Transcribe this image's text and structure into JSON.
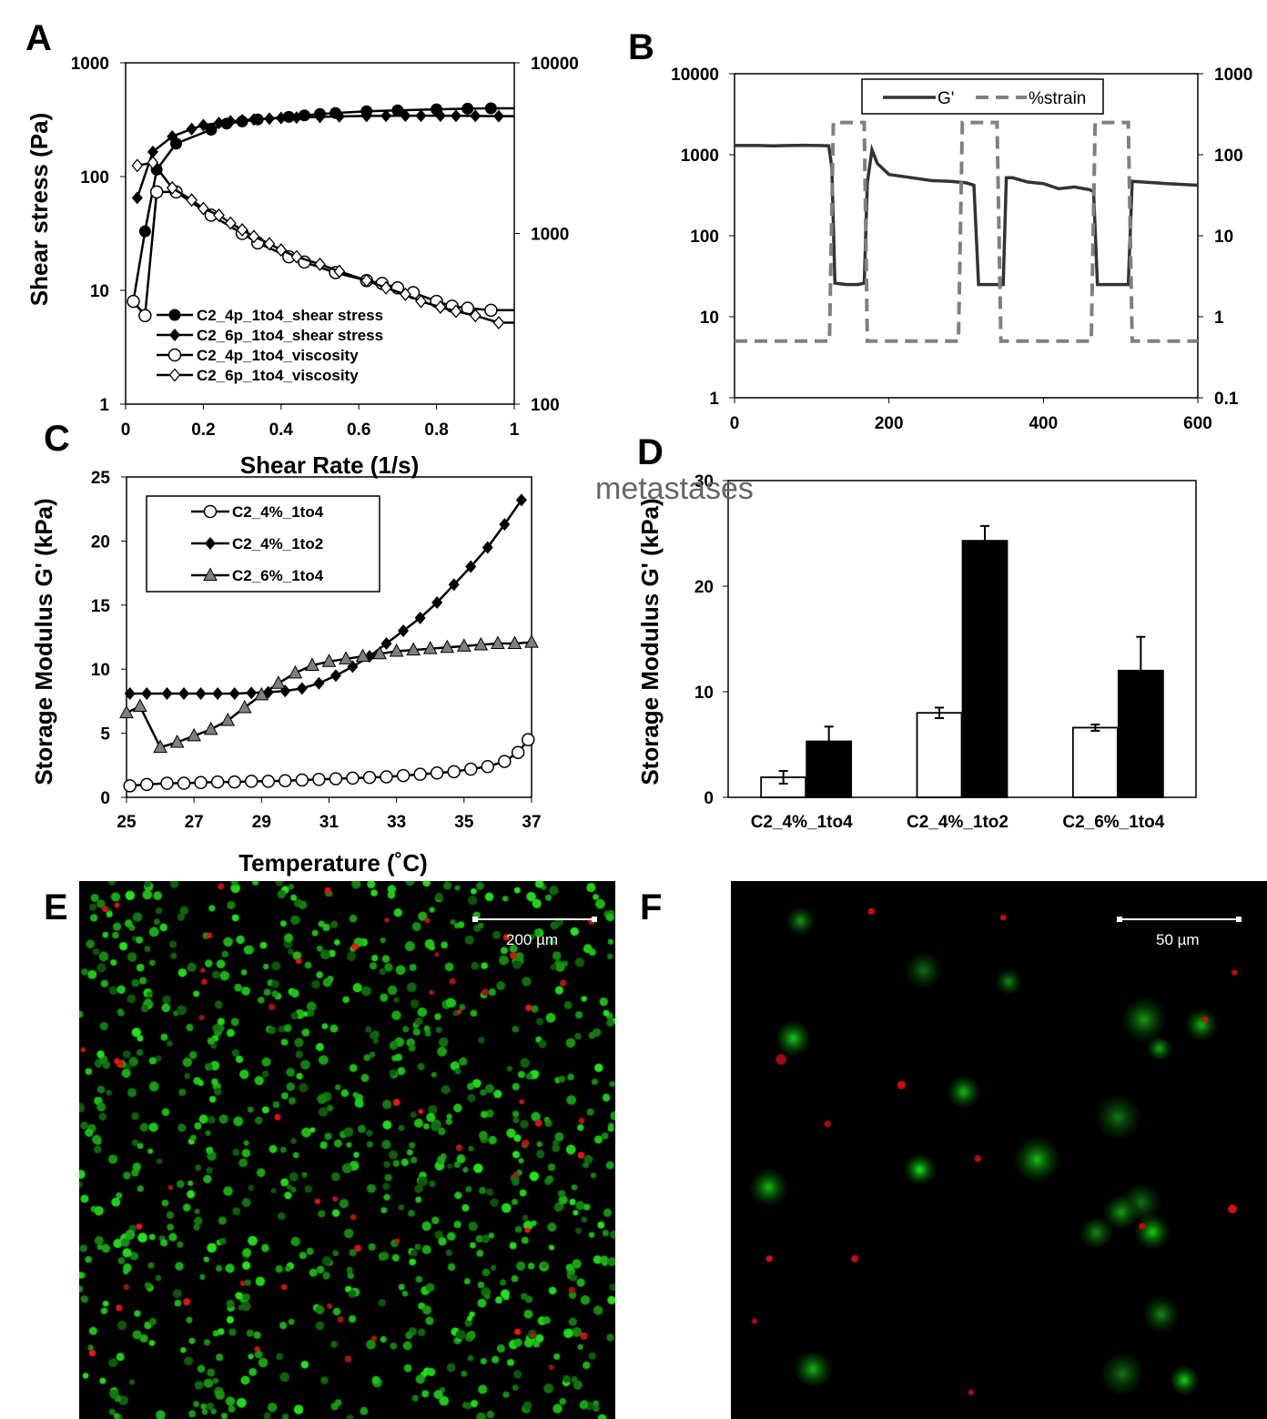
{
  "panel_letters": {
    "a": "A",
    "b": "B",
    "c": "C",
    "d": "D",
    "e": "E",
    "f": "F"
  },
  "watermark": "metastases",
  "chart_data": [
    {
      "panel": "A",
      "type": "line",
      "xlabel": "Shear Rate (1/s)",
      "ylabel": "Shear stress (Pa)",
      "xlim": [
        0,
        1
      ],
      "ylim": [
        1,
        1000
      ],
      "y_scale": "log",
      "y2lim": [
        100,
        10000
      ],
      "y2_scale": "log",
      "x_ticks": [
        "0",
        "0.2",
        "0.4",
        "0.6",
        "0.8",
        "1"
      ],
      "y_ticks": [
        "1",
        "10",
        "100",
        "1000"
      ],
      "y2_ticks": [
        "100",
        "1000",
        "10000"
      ],
      "legend_position": "bottom-left",
      "series": [
        {
          "name": "C2_4p_1to4_shear stress",
          "axis": "left",
          "marker": "filled-circle",
          "x": [
            0.02,
            0.05,
            0.08,
            0.13,
            0.22,
            0.26,
            0.3,
            0.34,
            0.42,
            0.46,
            0.5,
            0.54,
            0.62,
            0.7,
            0.8,
            0.88,
            0.94
          ],
          "y": [
            8,
            33,
            115,
            195,
            258,
            292,
            305,
            318,
            335,
            345,
            355,
            362,
            375,
            382,
            390,
            395,
            398
          ]
        },
        {
          "name": "C2_6p_1to4_shear stress",
          "axis": "left",
          "marker": "filled-diamond",
          "x": [
            0.03,
            0.07,
            0.12,
            0.17,
            0.2,
            0.24,
            0.27,
            0.3,
            0.33,
            0.37,
            0.4,
            0.44,
            0.5,
            0.55,
            0.62,
            0.67,
            0.72,
            0.76,
            0.81,
            0.85,
            0.9,
            0.96
          ],
          "y": [
            65,
            165,
            225,
            262,
            283,
            296,
            306,
            313,
            318,
            323,
            327,
            330,
            335,
            338,
            341,
            342,
            343,
            343,
            343,
            342,
            341,
            340
          ]
        },
        {
          "name": "C2_4p_1to4_viscosity",
          "axis": "right",
          "marker": "open-circle",
          "x": [
            0.02,
            0.05,
            0.08,
            0.13,
            0.22,
            0.3,
            0.34,
            0.42,
            0.46,
            0.54,
            0.62,
            0.66,
            0.7,
            0.74,
            0.8,
            0.84,
            0.88,
            0.94
          ],
          "y": [
            400,
            330,
            1750,
            1750,
            1280,
            1000,
            880,
            730,
            680,
            590,
            530,
            510,
            480,
            450,
            400,
            375,
            365,
            355
          ]
        },
        {
          "name": "C2_6p_1to4_viscosity",
          "axis": "right",
          "marker": "open-diamond",
          "x": [
            0.03,
            0.07,
            0.12,
            0.17,
            0.2,
            0.24,
            0.27,
            0.3,
            0.33,
            0.37,
            0.4,
            0.44,
            0.5,
            0.55,
            0.62,
            0.67,
            0.72,
            0.76,
            0.81,
            0.85,
            0.9,
            0.96
          ],
          "y": [
            2500,
            2600,
            1850,
            1570,
            1400,
            1280,
            1150,
            1050,
            960,
            870,
            800,
            730,
            660,
            600,
            530,
            480,
            440,
            400,
            370,
            350,
            330,
            300
          ]
        }
      ]
    },
    {
      "panel": "B",
      "type": "line",
      "xlim": [
        0,
        600
      ],
      "ylim": [
        1,
        10000
      ],
      "y_scale": "log",
      "y2lim": [
        0.1,
        1000
      ],
      "y2_scale": "log",
      "x_ticks": [
        "0",
        "200",
        "400",
        "600"
      ],
      "y_ticks": [
        "1",
        "10",
        "100",
        "1000",
        "10000"
      ],
      "y2_ticks": [
        "0.1",
        "1",
        "10",
        "100",
        "1000"
      ],
      "legend_position": "top-center",
      "series": [
        {
          "name": "G'",
          "axis": "left",
          "style": "solid",
          "x": [
            0,
            15,
            30,
            50,
            70,
            90,
            110,
            122,
            126,
            130,
            145,
            160,
            168,
            172,
            178,
            185,
            200,
            230,
            255,
            280,
            300,
            310,
            316,
            322,
            330,
            340,
            348,
            352,
            360,
            380,
            400,
            420,
            440,
            460,
            465,
            470,
            476,
            480,
            490,
            500,
            510,
            515,
            530,
            560,
            580,
            600
          ],
          "y": [
            1300,
            1300,
            1300,
            1290,
            1300,
            1310,
            1300,
            1290,
            700,
            26,
            25,
            25,
            26,
            450,
            1150,
            780,
            570,
            520,
            480,
            470,
            450,
            420,
            25,
            25,
            25,
            25,
            25,
            520,
            520,
            460,
            440,
            380,
            400,
            370,
            350,
            25,
            25,
            25,
            25,
            25,
            25,
            470,
            460,
            440,
            430,
            420
          ]
        },
        {
          "name": "%strain",
          "axis": "right",
          "style": "dashed",
          "x": [
            0,
            123,
            128,
            168,
            172,
            290,
            295,
            340,
            345,
            462,
            467,
            510,
            515,
            600
          ],
          "y": [
            0.5,
            0.5,
            250,
            250,
            0.5,
            0.5,
            250,
            250,
            0.5,
            0.5,
            250,
            250,
            0.5,
            0.5
          ]
        }
      ]
    },
    {
      "panel": "C",
      "type": "line",
      "xlabel": "Temperature (˚C)",
      "ylabel": "Storage Modulus G' (kPa)",
      "xlim": [
        25,
        37
      ],
      "ylim": [
        0,
        25
      ],
      "x_ticks": [
        "25",
        "27",
        "29",
        "31",
        "33",
        "35",
        "37"
      ],
      "y_ticks": [
        "0",
        "5",
        "10",
        "15",
        "20",
        "25"
      ],
      "legend_position": "top-left",
      "series": [
        {
          "name": "C2_4%_1to4",
          "marker": "open-circle",
          "x": [
            25.1,
            25.6,
            26.2,
            26.7,
            27.2,
            27.7,
            28.2,
            28.7,
            29.2,
            29.7,
            30.2,
            30.7,
            31.2,
            31.7,
            32.2,
            32.7,
            33.2,
            33.7,
            34.2,
            34.7,
            35.2,
            35.7,
            36.2,
            36.6,
            36.9
          ],
          "y": [
            0.9,
            1.0,
            1.1,
            1.1,
            1.15,
            1.2,
            1.2,
            1.25,
            1.25,
            1.3,
            1.35,
            1.4,
            1.45,
            1.5,
            1.55,
            1.6,
            1.7,
            1.8,
            1.9,
            2.0,
            2.2,
            2.4,
            2.8,
            3.5,
            4.5
          ]
        },
        {
          "name": "C2_4%_1to2",
          "marker": "filled-diamond",
          "x": [
            25.1,
            25.6,
            26.2,
            26.7,
            27.2,
            27.7,
            28.2,
            28.7,
            29.2,
            29.7,
            30.2,
            30.7,
            31.2,
            31.7,
            32.2,
            32.7,
            33.2,
            33.7,
            34.2,
            34.7,
            35.2,
            35.7,
            36.2,
            36.7
          ],
          "y": [
            8.1,
            8.1,
            8.1,
            8.1,
            8.1,
            8.1,
            8.1,
            8.15,
            8.2,
            8.3,
            8.5,
            8.9,
            9.5,
            10.2,
            11.0,
            12.0,
            13.0,
            14.0,
            15.2,
            16.6,
            18.0,
            19.5,
            21.3,
            23.2
          ]
        },
        {
          "name": "C2_6%_1to4",
          "marker": "gray-triangle",
          "x": [
            25.0,
            25.4,
            26.0,
            26.5,
            27.0,
            27.5,
            28.0,
            28.5,
            29.0,
            29.5,
            30.0,
            30.5,
            31.0,
            31.5,
            32.0,
            32.5,
            33.0,
            33.5,
            34.0,
            34.5,
            35.0,
            35.5,
            36.0,
            36.5,
            37.0
          ],
          "y": [
            6.6,
            7.1,
            3.9,
            4.3,
            4.8,
            5.3,
            6.0,
            7.0,
            8.0,
            8.9,
            9.7,
            10.3,
            10.6,
            10.8,
            11.0,
            11.2,
            11.4,
            11.5,
            11.6,
            11.7,
            11.8,
            11.9,
            12.0,
            12.0,
            12.1
          ]
        }
      ]
    },
    {
      "panel": "D",
      "type": "bar",
      "ylabel": "Storage Modulus G' (kPa)",
      "ylim": [
        0,
        30
      ],
      "y_ticks": [
        "0",
        "10",
        "20",
        "30"
      ],
      "categories": [
        "C2_4%_1to4",
        "C2_4%_1to2",
        "C2_6%_1to4"
      ],
      "series": [
        {
          "fill": "#ffffff",
          "values": [
            1.9,
            8.0,
            6.6
          ],
          "errors": [
            0.6,
            0.5,
            0.3
          ]
        },
        {
          "fill": "#000000",
          "values": [
            5.3,
            24.3,
            12.0
          ],
          "errors": [
            1.4,
            1.4,
            3.2
          ]
        }
      ]
    }
  ],
  "micrographs": {
    "e": {
      "scale_label": "200 µm",
      "green_cells": 900,
      "red_cells": 60
    },
    "f": {
      "scale_label": "50 µm",
      "green_cells": 20,
      "red_cells": 14
    }
  }
}
